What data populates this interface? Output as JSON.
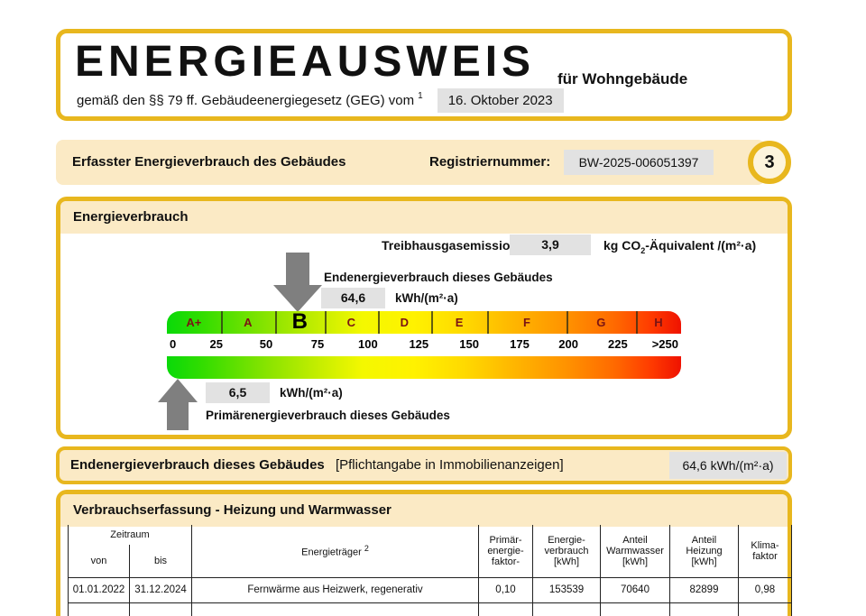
{
  "colors": {
    "gold_border": "#E8B71E",
    "cream_band": "#FBEAC5",
    "gray_value_box": "#E2E2E2",
    "arrow_gray": "#7F7F7F",
    "class_letter_red": "#7A1414"
  },
  "title_box": {
    "title": "ENERGIEAUSWEIS",
    "subtitle": "für Wohngebäude",
    "law_text": "gemäß den §§ 79 ff. Gebäudeenergiegesetz (GEG) vom",
    "law_footnote_sup": "1",
    "date_value": "16. Oktober 2023"
  },
  "info_row": {
    "label": "Erfasster Energieverbrauch des Gebäudes",
    "reg_label": "Registriernummer:",
    "reg_value": "BW-2025-006051397",
    "page_badge": "3"
  },
  "energy_section": {
    "title": "Energieverbrauch",
    "ghg_label": "Treibhausgasemissionen",
    "ghg_value": "3,9",
    "ghg_unit_pre": "kg CO",
    "ghg_unit_sub": "2",
    "ghg_unit_post": "-Äquivalent /(m²·a)",
    "end_label": "Endenergieverbrauch dieses Gebäudes",
    "end_value": "64,6",
    "end_unit": "kWh/(m²·a)",
    "primary_value": "6,5",
    "primary_unit": "kWh/(m²·a)",
    "primary_label": "Primärenergieverbrauch dieses Gebäudes"
  },
  "scale": {
    "highlighted": "B",
    "classes": [
      {
        "label": "A+",
        "from": 0,
        "to": 10.5
      },
      {
        "label": "A",
        "from": 10.5,
        "to": 21
      },
      {
        "label": "B",
        "from": 21,
        "to": 30.7
      },
      {
        "label": "C",
        "from": 30.7,
        "to": 41
      },
      {
        "label": "D",
        "from": 41,
        "to": 51.4
      },
      {
        "label": "E",
        "from": 51.4,
        "to": 62.3
      },
      {
        "label": "F",
        "from": 62.3,
        "to": 77.7
      },
      {
        "label": "G",
        "from": 77.7,
        "to": 91.2
      },
      {
        "label": "H",
        "from": 91.2,
        "to": 100
      }
    ],
    "ticks": [
      {
        "label": "0",
        "pct": 0.5
      },
      {
        "label": "25",
        "pct": 9.6
      },
      {
        "label": "50",
        "pct": 19.3
      },
      {
        "label": "75",
        "pct": 29.3
      },
      {
        "label": "100",
        "pct": 39.1
      },
      {
        "label": "125",
        "pct": 49.0
      },
      {
        "label": "150",
        "pct": 58.8
      },
      {
        "label": "175",
        "pct": 68.6
      },
      {
        "label": "200",
        "pct": 78.1
      },
      {
        "label": "225",
        "pct": 87.7
      },
      {
        "label": ">250",
        "pct": 97.7
      }
    ],
    "end_arrow_pct": 25.4,
    "primary_arrow_pct": 2.1
  },
  "end_row": {
    "bold_label": "Endenergieverbrauch dieses Gebäudes",
    "bracket_label": "[Pflichtangabe in Immobilienanzeigen]",
    "value": "64,6 kWh/(m²·a)"
  },
  "table_section": {
    "title": "Verbrauchserfassung - Heizung und Warmwasser",
    "headers": {
      "zeitraum": "Zeitraum",
      "von": "von",
      "bis": "bis",
      "energietraeger": "Energieträger",
      "energietraeger_sup": "2",
      "primaerfaktor": "Primär-\nenergie-\nfaktor-",
      "verbrauch": "Energie-\nverbrauch\n[kWh]",
      "warmwasser": "Anteil\nWarmwasser\n[kWh]",
      "heizung": "Anteil\nHeizung\n[kWh]",
      "klimafaktor": "Klima-\nfaktor"
    },
    "rows": [
      [
        "01.01.2022",
        "31.12.2024",
        "Fernwärme aus Heizwerk, regenerativ",
        "0,10",
        "153539",
        "70640",
        "82899",
        "0,98"
      ],
      [
        "",
        "",
        "",
        "",
        "",
        "",
        "",
        ""
      ]
    ]
  }
}
